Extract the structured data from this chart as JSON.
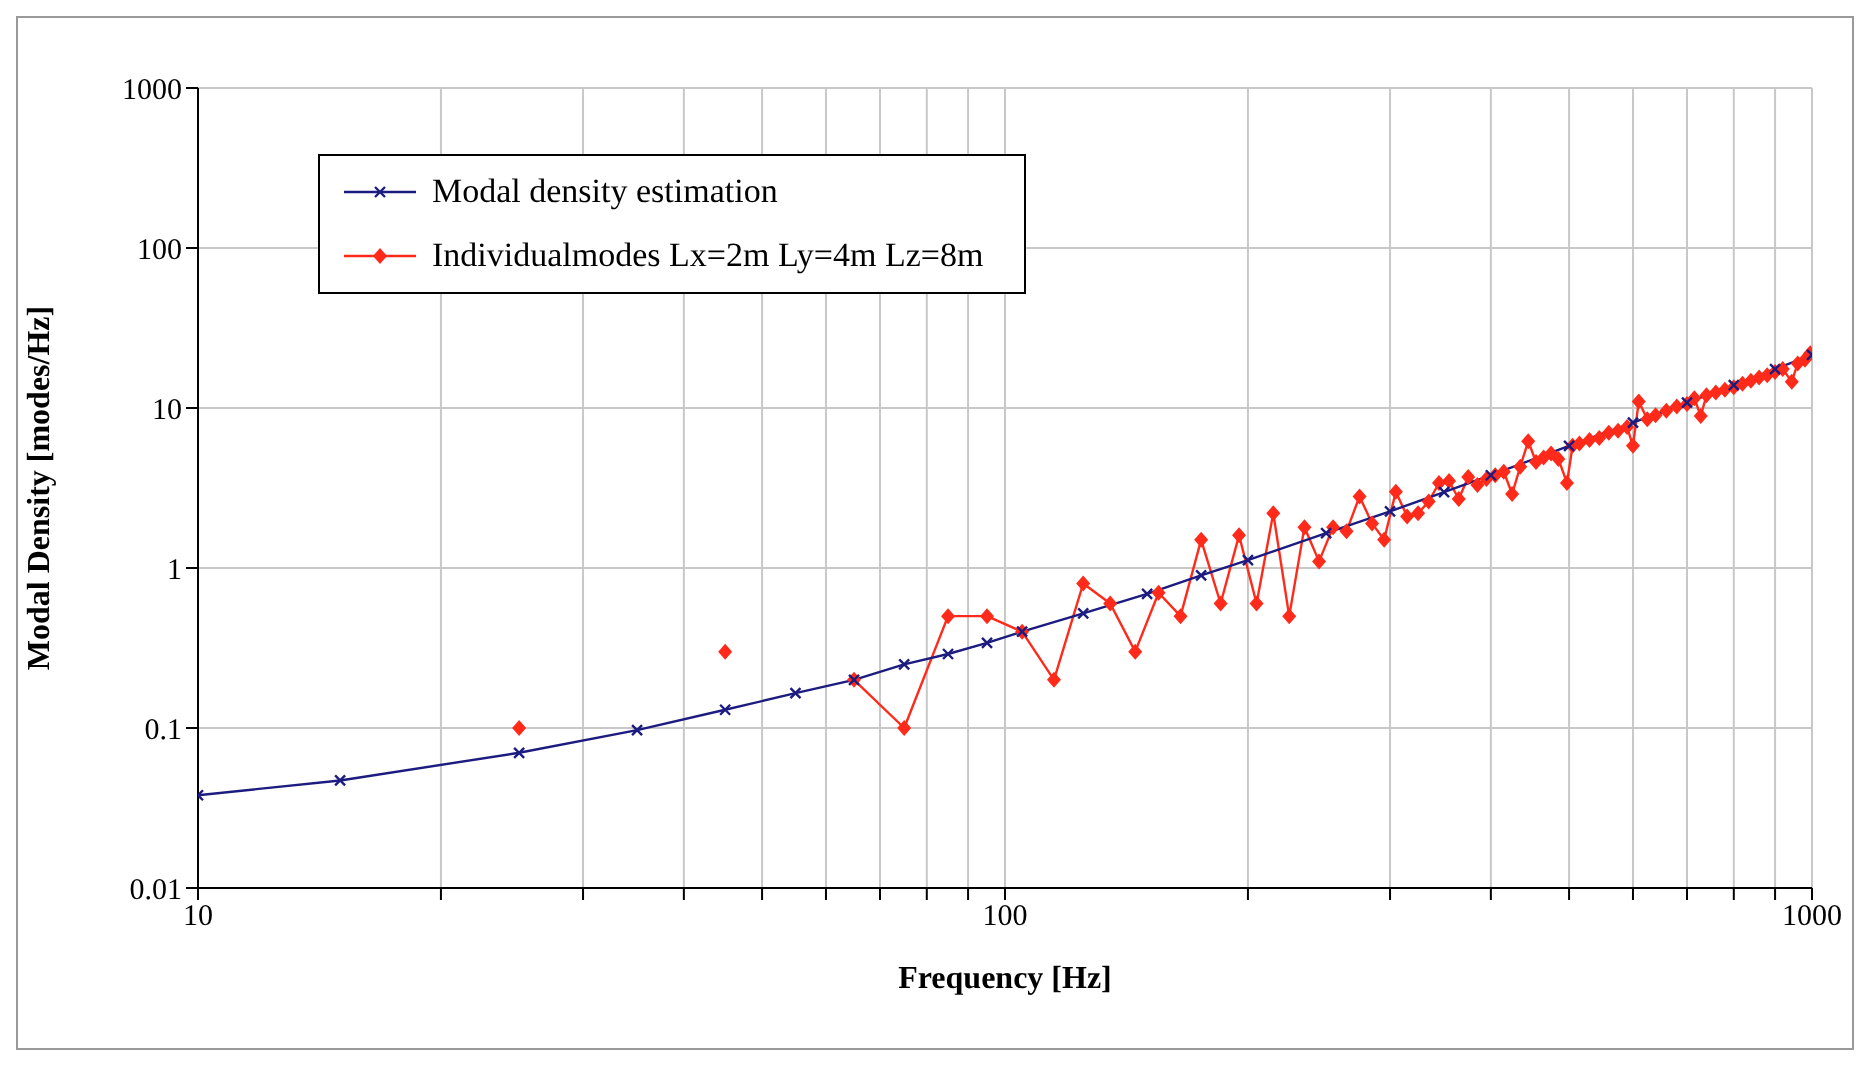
{
  "chart_data": {
    "type": "line",
    "xlabel": "Frequency [Hz]",
    "ylabel": "Modal Density [modes/Hz]",
    "log": "xy",
    "grid": true,
    "legend": "top left",
    "line_style": "solid",
    "xlim": [
      10,
      1000
    ],
    "ylim": [
      0.01,
      1000
    ],
    "xticks": [
      10,
      {
        "value": 20,
        "label": null
      },
      {
        "value": 30,
        "label": null
      },
      {
        "value": 40,
        "label": null
      },
      {
        "value": 50,
        "label": null
      },
      {
        "value": 60,
        "label": null
      },
      {
        "value": 70,
        "label": null
      },
      {
        "value": 80,
        "label": null
      },
      {
        "value": 90,
        "label": null
      },
      100,
      {
        "value": 200,
        "label": null
      },
      {
        "value": 300,
        "label": null
      },
      {
        "value": 400,
        "label": null
      },
      {
        "value": 500,
        "label": null
      },
      {
        "value": 600,
        "label": null
      },
      {
        "value": 700,
        "label": null
      },
      {
        "value": 800,
        "label": null
      },
      {
        "value": 900,
        "label": null
      },
      1000
    ],
    "yticks": [
      0.01,
      0.1,
      1,
      10,
      100,
      1000
    ],
    "series": [
      {
        "name": "Modal density estimation",
        "color": "#1c1c80",
        "marker": "cross",
        "x": [
          10,
          15,
          25,
          35,
          45,
          55,
          65,
          75,
          85,
          95,
          105,
          125,
          150,
          175,
          200,
          250,
          300,
          350,
          400,
          500,
          600,
          700,
          800,
          900,
          1000
        ],
        "values": [
          0.038,
          0.047,
          0.07,
          0.097,
          0.13,
          0.165,
          0.2,
          0.25,
          0.29,
          0.34,
          0.4,
          0.52,
          0.69,
          0.9,
          1.12,
          1.65,
          2.26,
          2.98,
          3.8,
          5.8,
          8.1,
          10.8,
          13.9,
          17.5,
          21.5
        ]
      },
      {
        "name": "Individualmodes Lx=2m  Ly=4m  Lz=8m",
        "color": "#ff2a1a",
        "marker": "diamond",
        "x": [
          25,
          35,
          45,
          55,
          65,
          75,
          85,
          95,
          105,
          115,
          125,
          135,
          145,
          155,
          165,
          175,
          185,
          195,
          205,
          215,
          225,
          235,
          245,
          255,
          265,
          275,
          285,
          295,
          305,
          315,
          325,
          335,
          345,
          355,
          365,
          375,
          385,
          395,
          405,
          415,
          425,
          435,
          445,
          455,
          465,
          475,
          485,
          497,
          505,
          515,
          530,
          545,
          560,
          575,
          590,
          600,
          610,
          625,
          640,
          660,
          680,
          700,
          715,
          728,
          740,
          760,
          780,
          800,
          820,
          840,
          860,
          880,
          900,
          920,
          944,
          960,
          980,
          995
        ],
        "values": [
          0.1,
          null,
          0.3,
          null,
          0.2,
          0.1,
          0.5,
          0.5,
          0.4,
          0.2,
          0.8,
          0.6,
          0.3,
          0.7,
          0.5,
          1.5,
          0.6,
          1.6,
          0.6,
          2.2,
          0.5,
          1.8,
          1.1,
          1.8,
          1.7,
          2.8,
          1.9,
          1.5,
          3.0,
          2.1,
          2.2,
          2.6,
          3.4,
          3.5,
          2.7,
          3.7,
          3.3,
          3.6,
          3.8,
          4.0,
          2.9,
          4.3,
          6.2,
          4.6,
          4.9,
          5.2,
          4.8,
          3.4,
          5.8,
          6.0,
          6.3,
          6.5,
          7.0,
          7.2,
          7.6,
          5.8,
          11,
          8.5,
          9.0,
          9.6,
          10.2,
          10.6,
          11.5,
          8.9,
          12,
          12.5,
          13,
          13.5,
          14.2,
          14.8,
          15.5,
          16,
          16.8,
          17.5,
          14.6,
          19,
          20,
          22
        ]
      }
    ]
  }
}
